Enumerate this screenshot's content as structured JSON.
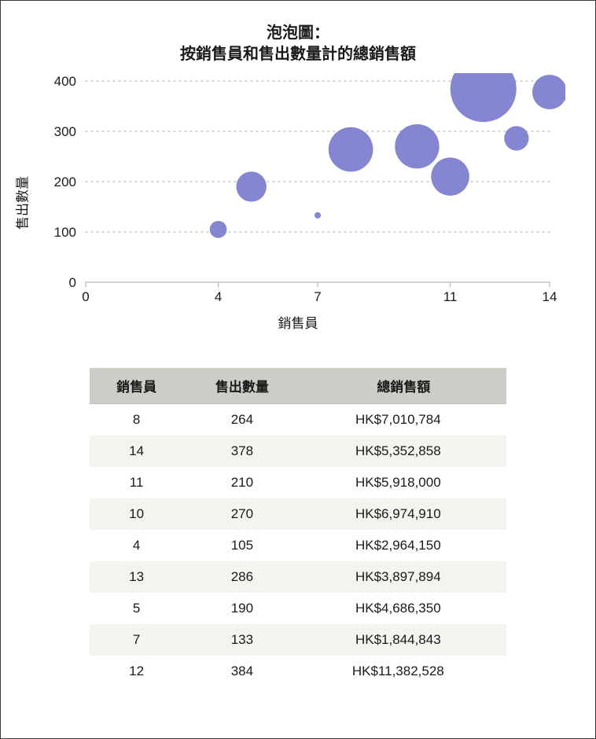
{
  "chart": {
    "type": "bubble",
    "title_line1": "泡泡圖：",
    "title_line2": "按銷售員和售出數量計的總銷售額",
    "xlabel": "銷售員",
    "ylabel": "售出數量",
    "xlim": [
      0,
      14
    ],
    "ylim": [
      0,
      400
    ],
    "xticks": [
      0,
      4,
      7,
      11,
      14
    ],
    "yticks": [
      0,
      100,
      200,
      300,
      400
    ],
    "bubble_fill": "#7d7fcf",
    "bubble_opacity": 0.95,
    "grid_color": "#b9b9b3",
    "axis_color": "#b9b9b3",
    "tick_font_size": 17,
    "title_font_size": 20,
    "label_font_size": 17,
    "background_color": "#ffffff",
    "size_scale_min": 4,
    "size_scale_max": 42,
    "points": [
      {
        "x": 8,
        "y": 264,
        "size": 7010784
      },
      {
        "x": 14,
        "y": 378,
        "size": 5352858
      },
      {
        "x": 11,
        "y": 210,
        "size": 5918000
      },
      {
        "x": 10,
        "y": 270,
        "size": 6974910
      },
      {
        "x": 4,
        "y": 105,
        "size": 2964150
      },
      {
        "x": 13,
        "y": 286,
        "size": 3897894
      },
      {
        "x": 5,
        "y": 190,
        "size": 4686350
      },
      {
        "x": 7,
        "y": 133,
        "size": 1844843
      },
      {
        "x": 12,
        "y": 384,
        "size": 11382528
      }
    ]
  },
  "table": {
    "header_bg": "#cdcdc7",
    "row_alt_bg": "#f3f3f0",
    "font_size": 17,
    "columns": [
      "銷售員",
      "售出數量",
      "總銷售額"
    ],
    "rows": [
      [
        "8",
        "264",
        "HK$7,010,784"
      ],
      [
        "14",
        "378",
        "HK$5,352,858"
      ],
      [
        "11",
        "210",
        "HK$5,918,000"
      ],
      [
        "10",
        "270",
        "HK$6,974,910"
      ],
      [
        "4",
        "105",
        "HK$2,964,150"
      ],
      [
        "13",
        "286",
        "HK$3,897,894"
      ],
      [
        "5",
        "190",
        "HK$4,686,350"
      ],
      [
        "7",
        "133",
        "HK$1,844,843"
      ],
      [
        "12",
        "384",
        "HK$11,382,528"
      ]
    ]
  }
}
